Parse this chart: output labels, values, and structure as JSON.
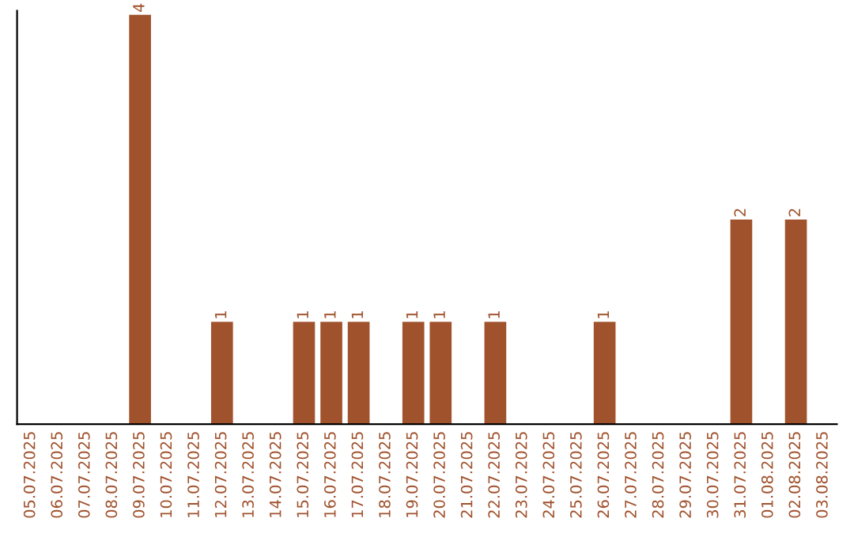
{
  "chart_data": {
    "type": "bar",
    "categories": [
      "05.07.2025",
      "06.07.2025",
      "07.07.2025",
      "08.07.2025",
      "09.07.2025",
      "10.07.2025",
      "11.07.2025",
      "12.07.2025",
      "13.07.2025",
      "14.07.2025",
      "15.07.2025",
      "16.07.2025",
      "17.07.2025",
      "18.07.2025",
      "19.07.2025",
      "20.07.2025",
      "21.07.2025",
      "22.07.2025",
      "23.07.2025",
      "24.07.2025",
      "25.07.2025",
      "26.07.2025",
      "27.07.2025",
      "28.07.2025",
      "29.07.2025",
      "30.07.2025",
      "31.07.2025",
      "01.08.2025",
      "02.08.2025",
      "03.08.2025"
    ],
    "values": [
      0,
      0,
      0,
      0,
      4,
      0,
      0,
      1,
      0,
      0,
      1,
      1,
      1,
      0,
      1,
      1,
      0,
      1,
      0,
      0,
      0,
      1,
      0,
      0,
      0,
      0,
      2,
      0,
      2,
      0
    ],
    "value_labels": [
      null,
      null,
      null,
      null,
      "4",
      null,
      null,
      "1",
      null,
      null,
      "1",
      "1",
      "1",
      null,
      "1",
      "1",
      null,
      "1",
      null,
      null,
      null,
      "1",
      null,
      null,
      null,
      null,
      "2",
      null,
      "2",
      null
    ],
    "color": "#a0522d",
    "tick_labels": "x",
    "grid": false,
    "legend": false
  }
}
